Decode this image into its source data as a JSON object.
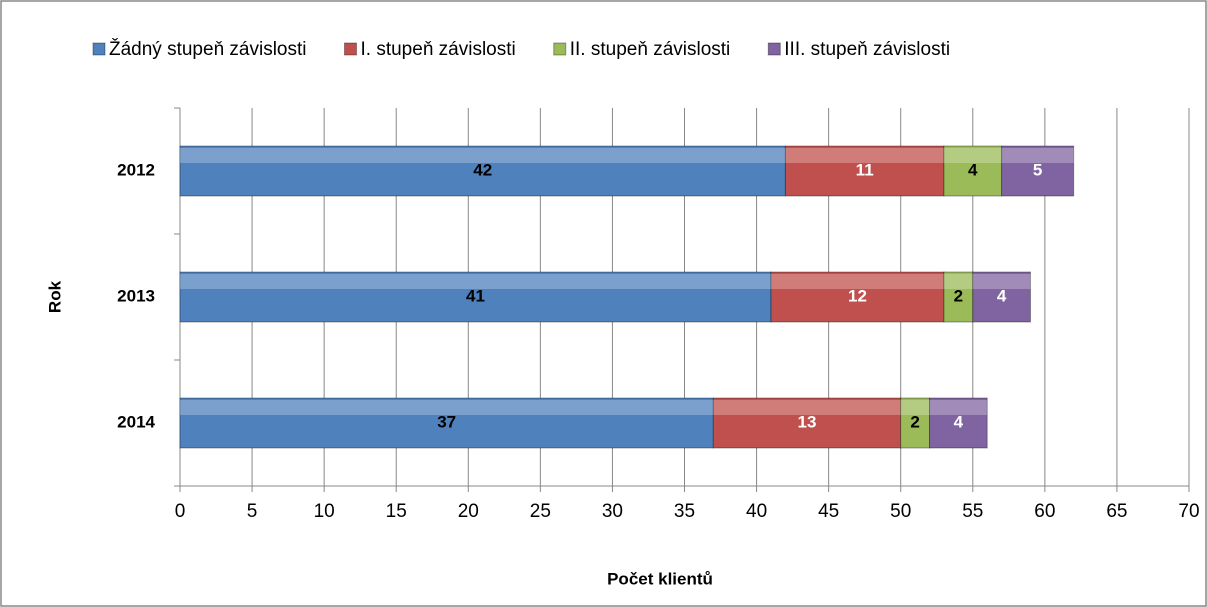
{
  "chart_data": {
    "type": "stacked_bar_horizontal",
    "categories": [
      "2012",
      "2013",
      "2014"
    ],
    "series": [
      {
        "name": "Žádný stupeň závislosti",
        "color": "#4f81bd",
        "label_color": "#000000",
        "values": [
          42,
          41,
          37
        ]
      },
      {
        "name": "I. stupeň závislosti",
        "color": "#c0504d",
        "label_color": "#ffffff",
        "values": [
          11,
          12,
          13
        ]
      },
      {
        "name": "II. stupeň závislosti",
        "color": "#9bbb59",
        "label_color": "#000000",
        "values": [
          4,
          2,
          2
        ]
      },
      {
        "name": "III. stupeň závislosti",
        "color": "#8064a2",
        "label_color": "#ffffff",
        "values": [
          5,
          4,
          4
        ]
      }
    ],
    "xlabel": "Počet klientů",
    "ylabel": "Rok",
    "xlim": [
      0,
      70
    ],
    "xticks": [
      0,
      5,
      10,
      15,
      20,
      25,
      30,
      35,
      40,
      45,
      50,
      55,
      60,
      65,
      70
    ],
    "grid": true,
    "legend": "top"
  }
}
